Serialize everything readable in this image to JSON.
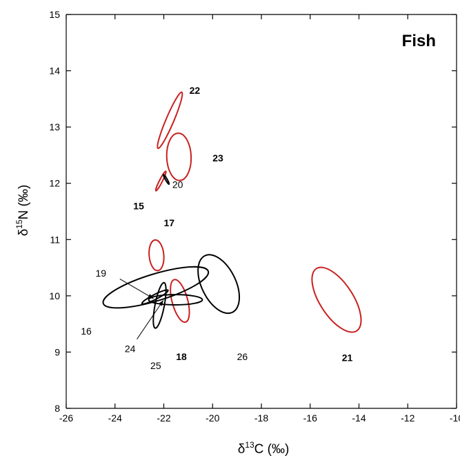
{
  "chart_data": {
    "type": "ellipse-plot",
    "panel_label": "Fish",
    "xlabel": {
      "prefix": "δ",
      "sup": "13",
      "main": "C (‰)"
    },
    "ylabel": {
      "prefix": "δ",
      "sup": "15",
      "main": "N (‰)"
    },
    "xlim": [
      -26,
      -10
    ],
    "ylim": [
      8,
      15
    ],
    "x_ticks": [
      "-26",
      "-24",
      "-22",
      "-20",
      "-18",
      "-16",
      "-14",
      "-12",
      "-10"
    ],
    "y_ticks": [
      "8",
      "9",
      "10",
      "11",
      "12",
      "13",
      "14",
      "15"
    ],
    "grid": false,
    "colors": {
      "red": "#c8201e",
      "black": "#000000"
    },
    "ellipses": [
      {
        "id": "22",
        "label": "22",
        "bold": true,
        "color": "red",
        "cx": -21.75,
        "cy": 13.12,
        "rx": 1.25,
        "ry": 0.16,
        "angle": 67
      },
      {
        "id": "23",
        "label": "23",
        "bold": true,
        "color": "red",
        "cx": -21.38,
        "cy": 12.47,
        "rx": 0.97,
        "ry": 0.5,
        "angle": 92
      },
      {
        "id": "15",
        "label": "15",
        "bold": true,
        "color": "red",
        "cx": -22.12,
        "cy": 12.04,
        "rx": 0.45,
        "ry": 0.06,
        "angle": 63
      },
      {
        "id": "20",
        "label": "20",
        "bold": false,
        "color": "black",
        "cx": -21.9,
        "cy": 12.07,
        "rx": 0.23,
        "ry": 0.035,
        "angle": -60
      },
      {
        "id": "17",
        "label": "17",
        "bold": true,
        "color": "red",
        "cx": -22.3,
        "cy": 10.72,
        "rx": 0.63,
        "ry": 0.3,
        "angle": 95
      },
      {
        "id": "26",
        "label": "26",
        "bold": false,
        "color": "black",
        "cx": -19.75,
        "cy": 10.21,
        "rx": 1.29,
        "ry": 0.7,
        "angle": -64
      },
      {
        "id": "21",
        "label": "21",
        "bold": true,
        "color": "red",
        "cx": -14.92,
        "cy": 9.93,
        "rx": 1.52,
        "ry": 0.68,
        "angle": -57
      },
      {
        "id": "18",
        "label": "18",
        "bold": true,
        "color": "red",
        "cx": -21.34,
        "cy": 9.91,
        "rx": 0.9,
        "ry": 0.32,
        "angle": -75
      },
      {
        "id": "16",
        "label": "16",
        "bold": false,
        "color": "black",
        "cx": -22.33,
        "cy": 10.15,
        "rx": 2.25,
        "ry": 0.55,
        "angle": 17
      },
      {
        "id": "24",
        "label": "24",
        "bold": false,
        "color": "black",
        "cx": -21.52,
        "cy": 9.93,
        "rx": 1.1,
        "ry": 0.21,
        "angle": 0
      },
      {
        "id": "25",
        "label": "25",
        "bold": false,
        "color": "black",
        "cx": -22.17,
        "cy": 9.83,
        "rx": 0.95,
        "ry": 0.19,
        "angle": 79
      },
      {
        "id": "19",
        "label": "19",
        "bold": false,
        "color": "black",
        "cx": -22.36,
        "cy": 9.98,
        "rx": 0.6,
        "ry": 0.1,
        "angle": 27
      }
    ],
    "labels": [
      {
        "text": "22",
        "bold": true,
        "x": -20.95,
        "y": 13.65
      },
      {
        "text": "23",
        "bold": true,
        "x": -20.0,
        "y": 12.45
      },
      {
        "text": "15",
        "bold": true,
        "x": -23.25,
        "y": 11.6
      },
      {
        "text": "20",
        "bold": false,
        "x": -21.65,
        "y": 11.98
      },
      {
        "text": "17",
        "bold": true,
        "x": -22.0,
        "y": 11.3
      },
      {
        "text": "26",
        "bold": false,
        "x": -19.0,
        "y": 8.92
      },
      {
        "text": "21",
        "bold": true,
        "x": -14.7,
        "y": 8.9
      },
      {
        "text": "18",
        "bold": true,
        "x": -21.5,
        "y": 8.92
      },
      {
        "text": "16",
        "bold": false,
        "x": -25.4,
        "y": 9.37
      },
      {
        "text": "24",
        "bold": false,
        "x": -23.6,
        "y": 9.06
      },
      {
        "text": "25",
        "bold": false,
        "x": -22.55,
        "y": 8.76
      },
      {
        "text": "19",
        "bold": false,
        "x": -24.8,
        "y": 10.4
      }
    ],
    "arrows": [
      {
        "from": [
          -23.8,
          10.3
        ],
        "to": [
          -22.42,
          9.95
        ]
      },
      {
        "from": [
          -23.1,
          9.23
        ],
        "to": [
          -22.02,
          9.92
        ]
      }
    ]
  }
}
